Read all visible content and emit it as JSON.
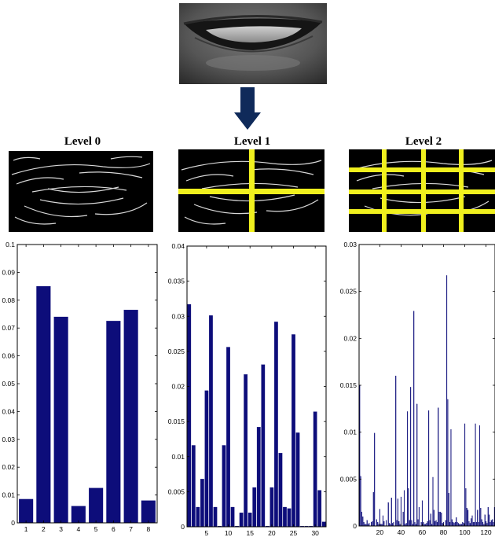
{
  "colors": {
    "bar": "#0d0d7a",
    "arrow": "#0f2a5a",
    "grid_line": "#f0f01e",
    "edge": "#d8d8d8"
  },
  "levels": [
    {
      "title": "Level 0"
    },
    {
      "title": "Level 1"
    },
    {
      "title": "Level 2"
    }
  ],
  "chart_data": [
    {
      "type": "bar",
      "title": "",
      "xlabel": "",
      "ylabel": "",
      "xlim": [
        0.5,
        8.5
      ],
      "ylim": [
        0,
        0.1
      ],
      "xticks": [
        1,
        2,
        3,
        4,
        5,
        6,
        7,
        8
      ],
      "yticks": [
        0,
        0.01,
        0.02,
        0.03,
        0.04,
        0.05,
        0.06,
        0.07,
        0.08,
        0.09,
        0.1
      ],
      "ytick_labels": [
        "0",
        "0.01",
        "0.02",
        "0.03",
        "0.04",
        "0.05",
        "0.06",
        "0.07",
        "0.08",
        "0.09",
        "0.1"
      ],
      "x": [
        1,
        2,
        3,
        4,
        5,
        6,
        7,
        8
      ],
      "values": [
        0.0085,
        0.085,
        0.074,
        0.006,
        0.0125,
        0.0725,
        0.0765,
        0.008
      ],
      "bar_width": 0.8
    },
    {
      "type": "bar",
      "title": "",
      "xlabel": "",
      "ylabel": "",
      "xlim": [
        0.5,
        32.5
      ],
      "ylim": [
        0,
        0.04
      ],
      "xticks": [
        5,
        10,
        15,
        20,
        25,
        30
      ],
      "yticks": [
        0,
        0.005,
        0.01,
        0.015,
        0.02,
        0.025,
        0.03,
        0.035,
        0.04
      ],
      "ytick_labels": [
        "0",
        "0.005",
        "0.01",
        "0.015",
        "0.02",
        "0.025",
        "0.03",
        "0.035",
        "0.04"
      ],
      "x": [
        1,
        2,
        3,
        4,
        5,
        6,
        7,
        8,
        9,
        10,
        11,
        12,
        13,
        14,
        15,
        16,
        17,
        18,
        19,
        20,
        21,
        22,
        23,
        24,
        25,
        26,
        27,
        28,
        29,
        30,
        31,
        32
      ],
      "values": [
        0.0317,
        0.0116,
        0.0028,
        0.0068,
        0.0194,
        0.0301,
        0.0028,
        0.0001,
        0.0116,
        0.0256,
        0.0028,
        0.0001,
        0.002,
        0.0217,
        0.002,
        0.0056,
        0.0142,
        0.0231,
        0.0001,
        0.0056,
        0.0292,
        0.0105,
        0.0028,
        0.0026,
        0.0274,
        0.0134,
        0.0001,
        0.0001,
        0.0001,
        0.0164,
        0.0052,
        0.0007
      ],
      "bar_width": 0.8
    },
    {
      "type": "bar",
      "title": "",
      "xlabel": "",
      "ylabel": "",
      "xlim": [
        0.5,
        128.5
      ],
      "ylim": [
        0,
        0.03
      ],
      "xticks": [
        20,
        40,
        60,
        80,
        100,
        120
      ],
      "yticks": [
        0,
        0.005,
        0.01,
        0.015,
        0.02,
        0.025,
        0.03
      ],
      "ytick_labels": [
        "0",
        "0.005",
        "0.01",
        "0.015",
        "0.02",
        "0.025",
        "0.03"
      ],
      "x": [
        1,
        2,
        3,
        4,
        5,
        6,
        7,
        8,
        9,
        10,
        11,
        12,
        13,
        14,
        15,
        16,
        17,
        18,
        19,
        20,
        21,
        22,
        23,
        24,
        25,
        26,
        27,
        28,
        29,
        30,
        31,
        32,
        33,
        34,
        35,
        36,
        37,
        38,
        39,
        40,
        41,
        42,
        43,
        44,
        45,
        46,
        47,
        48,
        49,
        50,
        51,
        52,
        53,
        54,
        55,
        56,
        57,
        58,
        59,
        60,
        61,
        62,
        63,
        64,
        65,
        66,
        67,
        68,
        69,
        70,
        71,
        72,
        73,
        74,
        75,
        76,
        77,
        78,
        79,
        80,
        81,
        82,
        83,
        84,
        85,
        86,
        87,
        88,
        89,
        90,
        91,
        92,
        93,
        94,
        95,
        96,
        97,
        98,
        99,
        100,
        101,
        102,
        103,
        104,
        105,
        106,
        107,
        108,
        109,
        110,
        111,
        112,
        113,
        114,
        115,
        116,
        117,
        118,
        119,
        120,
        121,
        122,
        123,
        124,
        125,
        126,
        127,
        128
      ],
      "values": [
        0.015,
        0.0053,
        0.0015,
        0.001,
        0.0004,
        0.0002,
        0.0002,
        0.0006,
        0.0002,
        0.0003,
        0.0,
        0.0004,
        0.0005,
        0.0036,
        0.0099,
        0.0,
        0.0007,
        0.0004,
        0.0002,
        0.0018,
        0.0002,
        0.0002,
        0.0011,
        0.0005,
        0.0,
        0.0006,
        0.0,
        0.0025,
        0.0003,
        0.0002,
        0.003,
        0.0003,
        0.0004,
        0.0,
        0.016,
        0.0006,
        0.0029,
        0.0005,
        0.0002,
        0.0031,
        0.0,
        0.0015,
        0.0038,
        0.0002,
        0.0003,
        0.0122,
        0.004,
        0.0006,
        0.0148,
        0.0006,
        0.0002,
        0.0229,
        0.0004,
        0.0002,
        0.013,
        0.0007,
        0.002,
        0.0,
        0.0004,
        0.0027,
        0.0004,
        0.0002,
        0.0002,
        0.0003,
        0.0005,
        0.0123,
        0.0006,
        0.0013,
        0.0002,
        0.0052,
        0.0017,
        0.0005,
        0.0006,
        0.0004,
        0.0126,
        0.0015,
        0.0015,
        0.0014,
        0.0003,
        0.0004,
        0.0,
        0.0006,
        0.0267,
        0.0135,
        0.0035,
        0.0004,
        0.0103,
        0.0007,
        0.0004,
        0.0003,
        0.0004,
        0.0009,
        0.0004,
        0.0003,
        0.0002,
        0.0002,
        0.0002,
        0.0004,
        0.0003,
        0.0109,
        0.004,
        0.0019,
        0.0017,
        0.0005,
        0.0003,
        0.0008,
        0.0011,
        0.0004,
        0.0004,
        0.0109,
        0.0004,
        0.0017,
        0.0004,
        0.0107,
        0.0019,
        0.0007,
        0.0004,
        0.0002,
        0.0012,
        0.0005,
        0.0003,
        0.002,
        0.0012,
        0.0004,
        0.0006,
        0.0007,
        0.0004,
        0.002
      ],
      "bar_width": 0.5
    }
  ]
}
